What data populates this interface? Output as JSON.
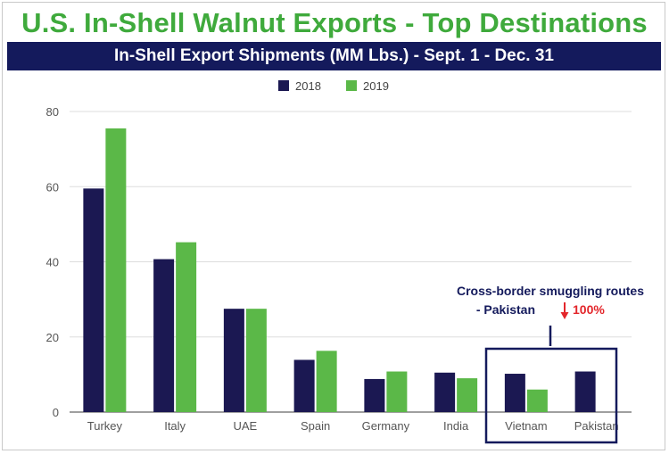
{
  "header": {
    "title": "U.S. In-Shell Walnut Exports - Top Destinations",
    "subtitle": "In-Shell Export Shipments (MM Lbs.) - Sept. 1 - Dec. 31"
  },
  "chart_data": {
    "type": "bar",
    "title": "In-Shell Export Shipments (MM Lbs.) - Sept. 1 - Dec. 31",
    "xlabel": "",
    "ylabel": "",
    "ylim": [
      0,
      80
    ],
    "yticks": [
      0,
      20,
      40,
      60,
      80
    ],
    "grid": true,
    "legend_position": "top-center",
    "categories": [
      "Turkey",
      "Italy",
      "UAE",
      "Spain",
      "Germany",
      "India",
      "Vietnam",
      "Pakistan"
    ],
    "series": [
      {
        "name": "2018",
        "color": "#1b1852",
        "values": [
          59.5,
          40.7,
          27.5,
          13.9,
          8.8,
          10.5,
          10.2,
          10.8
        ]
      },
      {
        "name": "2019",
        "color": "#5bb848",
        "values": [
          75.5,
          45.2,
          27.5,
          16.3,
          10.8,
          9.0,
          6.0,
          null
        ]
      }
    ]
  },
  "annotation": {
    "line1": "Cross-border smuggling routes",
    "line2": "- Pakistan",
    "change": "100%",
    "arrow_color": "#e3262b",
    "box_color": "#141a5c"
  }
}
